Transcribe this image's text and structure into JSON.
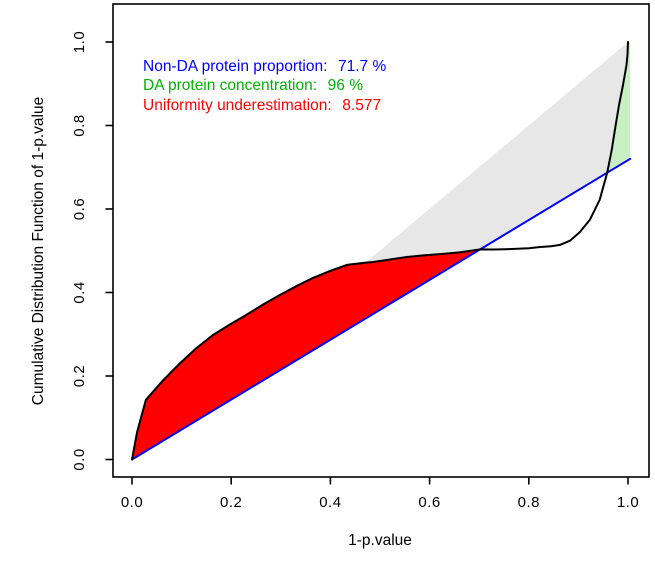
{
  "figure": {
    "background": "#ffffff"
  },
  "chart_data": {
    "type": "line",
    "title": "",
    "xlabel": "1-p.value",
    "ylabel": "Cumulative Distribution Function of 1-p.value",
    "xlim": [
      0.0,
      1.0
    ],
    "ylim": [
      0.0,
      1.0
    ],
    "grid": false,
    "xticks": [
      0.0,
      0.2,
      0.4,
      0.6,
      0.8,
      1.0
    ],
    "yticks": [
      0.0,
      0.2,
      0.4,
      0.6,
      0.8,
      1.0
    ],
    "xtick_labels": [
      "0.0",
      "0.2",
      "0.4",
      "0.6",
      "0.8",
      "1.0"
    ],
    "ytick_labels": [
      "0.0",
      "0.2",
      "0.4",
      "0.6",
      "0.8",
      "1.0"
    ],
    "series": [
      {
        "name": "uniform-reference-line",
        "color": "#0000ff",
        "width": 2,
        "points": [
          [
            0.0,
            0.0
          ],
          [
            1.0045,
            0.7203
          ]
        ]
      },
      {
        "name": "empirical-cdf",
        "color": "#000000",
        "width": 2,
        "points": [
          [
            0.0,
            0.0
          ],
          [
            0.01,
            0.065
          ],
          [
            0.028,
            0.143
          ],
          [
            0.063,
            0.19
          ],
          [
            0.097,
            0.231
          ],
          [
            0.13,
            0.267
          ],
          [
            0.163,
            0.298
          ],
          [
            0.197,
            0.323
          ],
          [
            0.23,
            0.346
          ],
          [
            0.264,
            0.371
          ],
          [
            0.298,
            0.394
          ],
          [
            0.331,
            0.415
          ],
          [
            0.365,
            0.435
          ],
          [
            0.4,
            0.452
          ],
          [
            0.433,
            0.466
          ],
          [
            0.471,
            0.4715
          ],
          [
            0.486,
            0.473
          ],
          [
            0.52,
            0.479
          ],
          [
            0.554,
            0.485
          ],
          [
            0.59,
            0.489
          ],
          [
            0.621,
            0.492
          ],
          [
            0.66,
            0.496
          ],
          [
            0.702,
            0.5033
          ],
          [
            0.73,
            0.503
          ],
          [
            0.76,
            0.504
          ],
          [
            0.8,
            0.506
          ],
          [
            0.823,
            0.509
          ],
          [
            0.845,
            0.511
          ],
          [
            0.863,
            0.514
          ],
          [
            0.883,
            0.524
          ],
          [
            0.903,
            0.545
          ],
          [
            0.923,
            0.574
          ],
          [
            0.943,
            0.622
          ],
          [
            0.958,
            0.687
          ],
          [
            0.967,
            0.74
          ],
          [
            0.975,
            0.8
          ],
          [
            0.982,
            0.85
          ],
          [
            0.99,
            0.897
          ],
          [
            0.997,
            0.945
          ],
          [
            0.999,
            0.97
          ],
          [
            1.0,
            1.0
          ]
        ]
      }
    ],
    "regions": [
      {
        "name": "identity-gap-region",
        "color": "#e7e7e7",
        "points": [
          [
            0.471,
            0.4715
          ],
          [
            1.0,
            1.0
          ],
          [
            0.999,
            0.97
          ],
          [
            0.997,
            0.945
          ],
          [
            0.99,
            0.897
          ],
          [
            0.982,
            0.85
          ],
          [
            0.975,
            0.8
          ],
          [
            0.967,
            0.74
          ],
          [
            0.958,
            0.687
          ],
          [
            0.702,
            0.5033
          ],
          [
            0.66,
            0.496
          ],
          [
            0.621,
            0.492
          ],
          [
            0.59,
            0.489
          ],
          [
            0.554,
            0.485
          ],
          [
            0.52,
            0.479
          ],
          [
            0.486,
            0.473
          ]
        ]
      },
      {
        "name": "uniformity-underestimation-region",
        "color": "#ff0000",
        "points": [
          [
            0.0,
            0.0
          ],
          [
            0.01,
            0.065
          ],
          [
            0.028,
            0.143
          ],
          [
            0.063,
            0.19
          ],
          [
            0.097,
            0.231
          ],
          [
            0.13,
            0.267
          ],
          [
            0.163,
            0.298
          ],
          [
            0.197,
            0.323
          ],
          [
            0.23,
            0.346
          ],
          [
            0.264,
            0.371
          ],
          [
            0.298,
            0.394
          ],
          [
            0.331,
            0.415
          ],
          [
            0.365,
            0.435
          ],
          [
            0.4,
            0.452
          ],
          [
            0.433,
            0.466
          ],
          [
            0.471,
            0.4715
          ],
          [
            0.486,
            0.473
          ],
          [
            0.52,
            0.479
          ],
          [
            0.554,
            0.485
          ],
          [
            0.59,
            0.489
          ],
          [
            0.621,
            0.492
          ],
          [
            0.66,
            0.496
          ],
          [
            0.702,
            0.5033
          ]
        ]
      },
      {
        "name": "da-concentration-region",
        "color": "#c8eec4",
        "points": [
          [
            0.958,
            0.687
          ],
          [
            0.967,
            0.74
          ],
          [
            0.975,
            0.8
          ],
          [
            0.982,
            0.85
          ],
          [
            0.99,
            0.897
          ],
          [
            0.997,
            0.945
          ],
          [
            0.999,
            0.97
          ],
          [
            1.0,
            1.0
          ],
          [
            1.0045,
            1.0
          ],
          [
            1.0045,
            0.7203
          ]
        ]
      }
    ],
    "annotations": [
      {
        "label": "Non-DA protein proportion:",
        "value": "71.7 %",
        "color": "#0000ff"
      },
      {
        "label": "DA protein concentration:",
        "value": "96 %",
        "color": "#00b300"
      },
      {
        "label": "Uniformity underestimation:",
        "value": "8.577",
        "color": "#ff0000"
      }
    ]
  }
}
